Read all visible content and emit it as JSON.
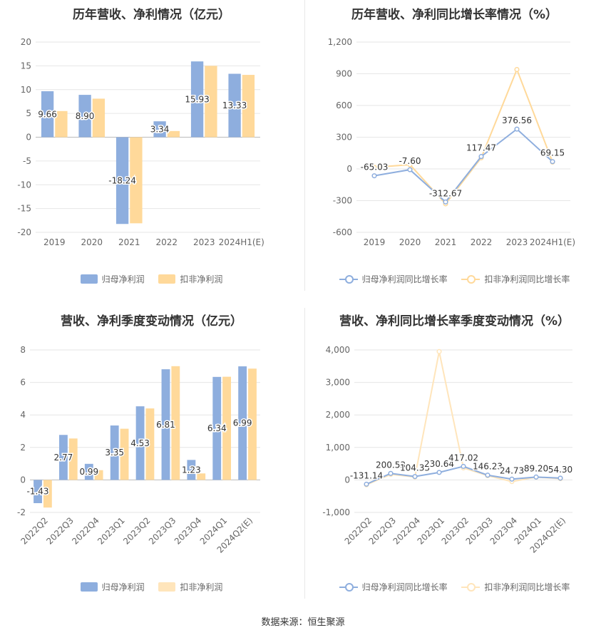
{
  "colors": {
    "series_a": "#8eaede",
    "series_b": "#ffd99a",
    "grid": "#e6e6e6",
    "axis_text": "#666666",
    "label_text": "#333333"
  },
  "source": "数据来源：恒生聚源",
  "chart_data": [
    {
      "type": "bar",
      "title": "历年营收、净利情况（亿元）",
      "categories": [
        "2019",
        "2020",
        "2021",
        "2022",
        "2023",
        "2024H1(E)"
      ],
      "series": [
        {
          "name": "归母净利润",
          "values": [
            9.66,
            8.9,
            -18.24,
            3.34,
            15.93,
            13.33
          ],
          "labels": [
            "9.66",
            "8.90",
            "-18.24",
            "3.34",
            "15.93",
            "13.33"
          ]
        },
        {
          "name": "扣非净利润",
          "values": [
            5.5,
            8.1,
            -18.1,
            1.3,
            15.0,
            13.1
          ]
        }
      ],
      "yticks": [
        "20",
        "15",
        "10",
        "5",
        "0",
        "-5",
        "-10",
        "-15",
        "-20"
      ],
      "ylim": [
        -20,
        20
      ],
      "grid": true,
      "legend": "bottom",
      "xlabel": "",
      "ylabel": ""
    },
    {
      "type": "line",
      "title": "历年营收、净利同比增长率情况（%）",
      "categories": [
        "2019",
        "2020",
        "2021",
        "2022",
        "2023",
        "2024H1(E)"
      ],
      "series": [
        {
          "name": "归母净利润同比增长率",
          "values": [
            -65.03,
            -7.6,
            -312.67,
            117.47,
            376.56,
            69.15
          ],
          "labels": [
            "-65.03",
            "-7.60",
            "-312.67",
            "117.47",
            "376.56",
            "69.15"
          ]
        },
        {
          "name": "扣非净利润同比增长率",
          "values": [
            15,
            40,
            -330,
            105,
            940,
            65
          ]
        }
      ],
      "yticks": [
        "1,200",
        "900",
        "600",
        "300",
        "0",
        "-300",
        "-600"
      ],
      "ylim": [
        -600,
        1200
      ],
      "grid": true,
      "legend": "bottom",
      "xlabel": "",
      "ylabel": ""
    },
    {
      "type": "bar",
      "title": "营收、净利季度变动情况（亿元）",
      "categories": [
        "2022Q2",
        "2022Q3",
        "2022Q4",
        "2023Q1",
        "2023Q2",
        "2023Q3",
        "2023Q4",
        "2024Q1",
        "2024Q2(E)"
      ],
      "series": [
        {
          "name": "归母净利润",
          "values": [
            -1.43,
            2.77,
            0.99,
            3.35,
            4.53,
            6.81,
            1.23,
            6.34,
            6.99
          ],
          "labels": [
            "-1.43",
            "2.77",
            "0.99",
            "3.35",
            "4.53",
            "6.81",
            "1.23",
            "6.34",
            "6.99"
          ]
        },
        {
          "name": "扣非净利润",
          "values": [
            -1.7,
            2.55,
            0.6,
            3.15,
            4.4,
            7.0,
            0.4,
            6.35,
            6.85
          ]
        }
      ],
      "yticks": [
        "8",
        "6",
        "4",
        "2",
        "0",
        "-2"
      ],
      "ylim": [
        -2,
        8
      ],
      "grid": true,
      "legend": "bottom",
      "xlabel": "",
      "ylabel": ""
    },
    {
      "type": "line",
      "title": "营收、净利同比增长率季度变动情况（%）",
      "categories": [
        "2022Q2",
        "2022Q3",
        "2022Q4",
        "2023Q1",
        "2023Q2",
        "2023Q3",
        "2023Q4",
        "2024Q1",
        "2024Q2(E)"
      ],
      "series": [
        {
          "name": "归母净利润同比增长率",
          "values": [
            -131.14,
            200.53,
            104.33,
            230.64,
            417.02,
            146.23,
            24.73,
            89.2,
            54.3
          ],
          "labels": [
            "-131.14",
            "200.53",
            "104.33",
            "230.64",
            "417.02",
            "146.23",
            "24.73",
            "89.20",
            "54.30"
          ]
        },
        {
          "name": "扣非净利润同比增长率",
          "values": [
            -150,
            170,
            90,
            3950,
            370,
            130,
            -50,
            85,
            40
          ]
        }
      ],
      "yticks": [
        "4,000",
        "3,000",
        "2,000",
        "1,000",
        "0",
        "-1,000"
      ],
      "ylim": [
        -1000,
        4000
      ],
      "grid": true,
      "legend": "bottom",
      "xlabel": "",
      "ylabel": ""
    }
  ]
}
